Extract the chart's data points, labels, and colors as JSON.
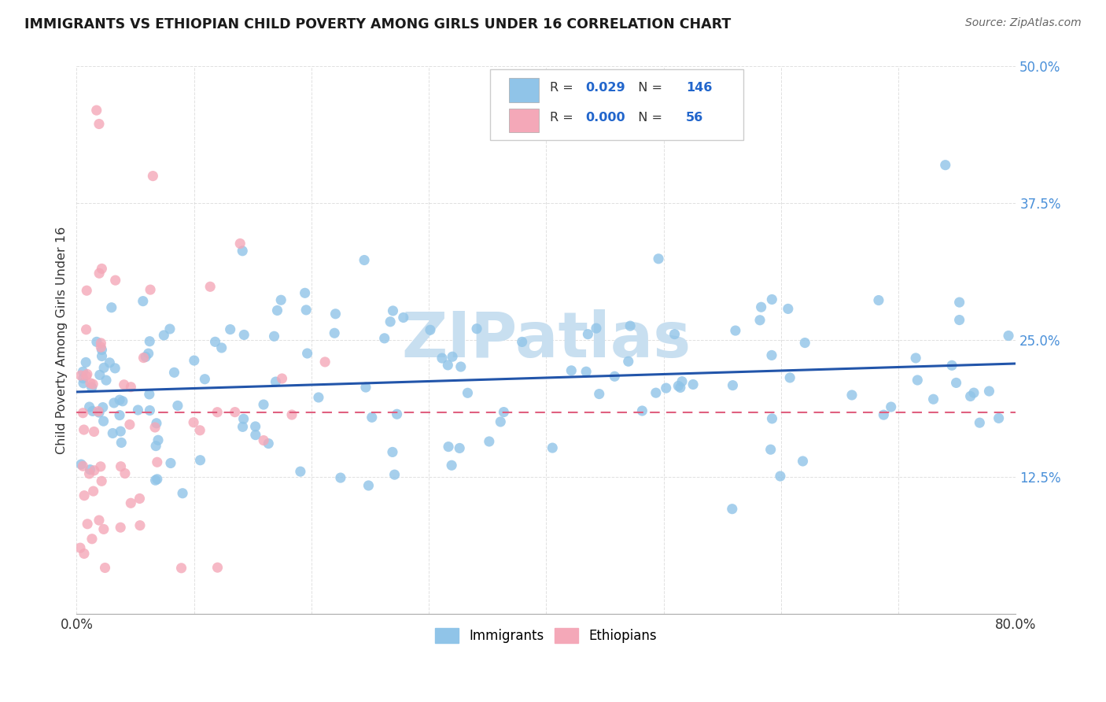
{
  "title": "IMMIGRANTS VS ETHIOPIAN CHILD POVERTY AMONG GIRLS UNDER 16 CORRELATION CHART",
  "source": "Source: ZipAtlas.com",
  "ylabel": "Child Poverty Among Girls Under 16",
  "xlim": [
    0.0,
    0.8
  ],
  "ylim": [
    0.0,
    0.5
  ],
  "xtick_positions": [
    0.0,
    0.1,
    0.2,
    0.3,
    0.4,
    0.5,
    0.6,
    0.7,
    0.8
  ],
  "xticklabels": [
    "0.0%",
    "",
    "",
    "",
    "",
    "",
    "",
    "",
    "80.0%"
  ],
  "ytick_positions": [
    0.0,
    0.125,
    0.25,
    0.375,
    0.5
  ],
  "yticklabels": [
    "",
    "12.5%",
    "25.0%",
    "37.5%",
    "50.0%"
  ],
  "watermark": "ZIPatlas",
  "legend_r1": "0.029",
  "legend_n1": "146",
  "legend_r2": "0.000",
  "legend_n2": "56",
  "blue_color": "#90c4e8",
  "pink_color": "#f4a8b8",
  "blue_line_color": "#2255aa",
  "pink_line_color": "#e06080",
  "grid_color": "#cccccc",
  "bg_color": "#ffffff",
  "tick_color": "#4a90d9",
  "title_color": "#1a1a1a",
  "source_color": "#666666",
  "legend_text_color": "#333333",
  "legend_val_color": "#2266cc",
  "watermark_color": "#c8dff0"
}
